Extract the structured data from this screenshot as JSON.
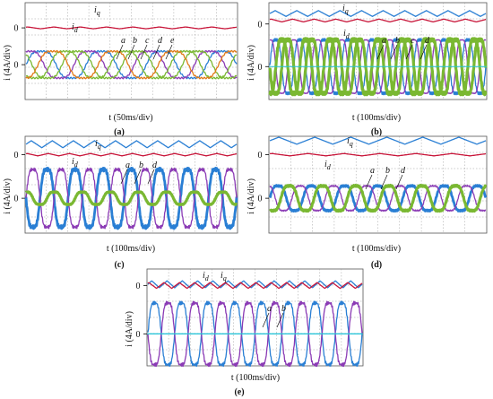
{
  "figure": {
    "ylabel": "i (4A/div)",
    "zero_label": "0"
  },
  "colors": {
    "iq": "#2a7fd4",
    "id": "#c8163a",
    "a": "#2a7fd4",
    "b": "#8b3bb5",
    "c": "#7ab832",
    "d": "#7ab832",
    "e": "#e07a1a",
    "aux": "#23c3d8"
  },
  "chart_data": [
    {
      "type": "line",
      "panel": "(a)",
      "xlabel": "t (50ms/div)",
      "ylabel": "i (4A/div)",
      "labels": [
        "i_q",
        "i_d",
        "a",
        "b",
        "c",
        "d",
        "e"
      ],
      "series": [
        {
          "key": "iq",
          "level": 3.2,
          "ripple": 0.35,
          "periods": 8
        },
        {
          "key": "id",
          "level": 0.0,
          "ripple": 0.08,
          "periods": 8
        },
        {
          "key": "a",
          "amp": 1.3,
          "phase": 0,
          "periods": 3.5
        },
        {
          "key": "b",
          "amp": 1.3,
          "phase": 72,
          "periods": 3.5
        },
        {
          "key": "c",
          "amp": 1.3,
          "phase": 144,
          "periods": 3.5
        },
        {
          "key": "d",
          "amp": 1.3,
          "phase": 216,
          "periods": 3.5
        },
        {
          "key": "e",
          "amp": 1.3,
          "phase": 288,
          "periods": 3.5
        }
      ]
    },
    {
      "type": "line",
      "panel": "(b)",
      "xlabel": "t (100ms/div)",
      "ylabel": "i (4A/div)",
      "labels": [
        "i_q",
        "i_d",
        "a",
        "b",
        "c",
        "d"
      ],
      "series": [
        {
          "key": "iq",
          "level": 0.9,
          "ripple": 0.25,
          "periods": 10
        },
        {
          "key": "id",
          "level": 0.3,
          "ripple": 0.12,
          "periods": 10
        },
        {
          "key": "a",
          "amp": 2.6,
          "phase": 0,
          "periods": 9
        },
        {
          "key": "b",
          "amp": 2.6,
          "phase": 90,
          "periods": 9
        },
        {
          "key": "c",
          "amp": 2.6,
          "phase": 180,
          "periods": 9
        },
        {
          "key": "d",
          "amp": 2.6,
          "phase": 270,
          "periods": 9
        }
      ]
    },
    {
      "type": "line",
      "panel": "(c)",
      "xlabel": "t (100ms/div)",
      "ylabel": "i (4A/div)",
      "labels": [
        "i_q",
        "i_d",
        "a",
        "b",
        "d"
      ],
      "series": [
        {
          "key": "iq",
          "level": 0.9,
          "ripple": 0.3,
          "periods": 10
        },
        {
          "key": "id",
          "level": 0.0,
          "ripple": 0.1,
          "periods": 10
        },
        {
          "key": "a",
          "amp": 2.8,
          "phase": 180,
          "periods": 7.5
        },
        {
          "key": "b",
          "amp": 2.8,
          "phase": 0,
          "periods": 7.5
        },
        {
          "key": "d",
          "amp": 0.6,
          "phase": 90,
          "periods": 7.5
        }
      ]
    },
    {
      "type": "line",
      "panel": "(d)",
      "xlabel": "t (100ms/div)",
      "ylabel": "i (4A/div)",
      "labels": [
        "i_q",
        "i_d",
        "a",
        "b",
        "d"
      ],
      "series": [
        {
          "key": "iq",
          "level": 1.2,
          "ripple": 0.3,
          "periods": 6
        },
        {
          "key": "id",
          "level": 0.0,
          "ripple": 0.1,
          "periods": 6
        },
        {
          "key": "a",
          "amp": 1.2,
          "phase": 0,
          "periods": 6.5
        },
        {
          "key": "b",
          "amp": 1.2,
          "phase": 120,
          "periods": 6.5
        },
        {
          "key": "d",
          "amp": 1.2,
          "phase": 240,
          "periods": 6.5
        }
      ]
    },
    {
      "type": "line",
      "panel": "(e)",
      "xlabel": "t (100ms/div)",
      "ylabel": "i (4A/div)",
      "labels": [
        "i_d",
        "i_q",
        "a",
        "b"
      ],
      "series": [
        {
          "key": "iq",
          "level": 0.1,
          "ripple": 0.3,
          "periods": 14
        },
        {
          "key": "id",
          "level": 0.0,
          "ripple": 0.25,
          "periods": 14
        },
        {
          "key": "a",
          "amp": 3.0,
          "phase": 0,
          "periods": 8
        },
        {
          "key": "b",
          "amp": 3.0,
          "phase": 180,
          "periods": 8
        },
        {
          "key": "aux",
          "amp": 0.0,
          "phase": 0,
          "periods": 1
        }
      ]
    }
  ]
}
